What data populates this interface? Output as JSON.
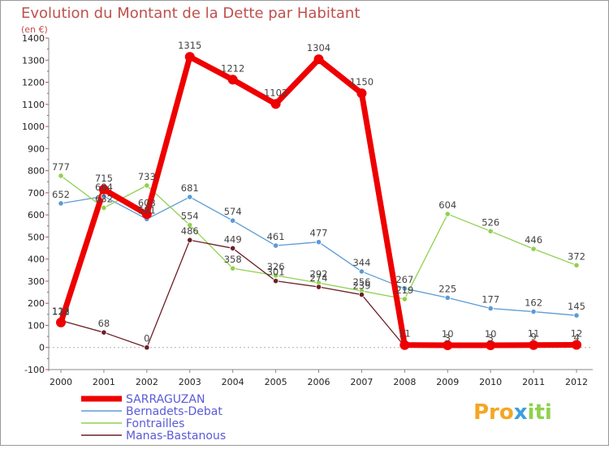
{
  "chart_data": {
    "type": "line",
    "title": "Evolution du Montant de la Dette par Habitant",
    "subtitle": "(en €)",
    "x": [
      "2000",
      "2001",
      "2002",
      "2003",
      "2004",
      "2005",
      "2006",
      "2007",
      "2008",
      "2009",
      "2010",
      "2011",
      "2012"
    ],
    "y_ticks": [
      "-100",
      "0",
      "100",
      "200",
      "300",
      "400",
      "500",
      "600",
      "700",
      "800",
      "900",
      "1000",
      "1100",
      "1200",
      "1300",
      "1400"
    ],
    "ylim": [
      -100,
      1400
    ],
    "grid": false,
    "legend_position": "bottom-left",
    "series": [
      {
        "name": "Bernadets-Debat",
        "color": "#5b9bd5",
        "values": [
          652,
          684,
          581,
          681,
          574,
          461,
          477,
          344,
          267,
          225,
          177,
          162,
          145
        ],
        "labels": [
          "652",
          "684",
          "581",
          "681",
          "574",
          "461",
          "477",
          "344",
          "267",
          "225",
          "177",
          "162",
          "145"
        ]
      },
      {
        "name": "Fontrailles",
        "color": "#8fd14f",
        "values": [
          777,
          632,
          733,
          554,
          358,
          326,
          292,
          256,
          219,
          604,
          526,
          446,
          372
        ],
        "labels": [
          "777",
          "632",
          "733",
          "554",
          "358",
          "326",
          "292",
          "256",
          "219",
          "604",
          "526",
          "446",
          "372"
        ]
      },
      {
        "name": "Manas-Bastanous",
        "color": "#6b1f26",
        "values": [
          122,
          68,
          0,
          486,
          449,
          301,
          274,
          239,
          5,
          3,
          3,
          9,
          4
        ],
        "labels": [
          "122",
          "68",
          "0",
          "486",
          "449",
          "301",
          "274",
          "239",
          "",
          "3",
          "3",
          "9",
          "4"
        ]
      },
      {
        "name": "SARRAGUZAN",
        "color": "#ee0000",
        "values": [
          113,
          715,
          603,
          1315,
          1212,
          1102,
          1304,
          1150,
          11,
          10,
          10,
          11,
          12
        ],
        "labels": [
          "113",
          "715",
          "603",
          "1315",
          "1212",
          "1102",
          "1304",
          "1150",
          "11",
          "10",
          "10",
          "11",
          "12"
        ]
      }
    ]
  },
  "branding": {
    "logo_text": "Proxiti"
  }
}
